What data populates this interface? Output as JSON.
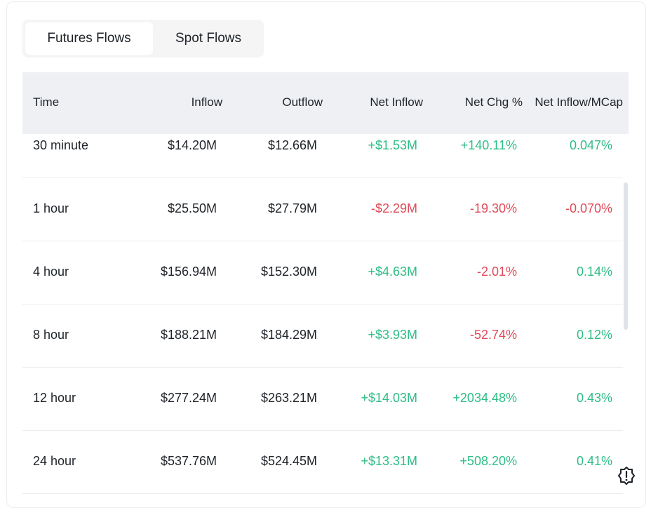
{
  "tabs": [
    "Futures Flows",
    "Spot Flows"
  ],
  "table": {
    "columns": [
      "Time",
      "Inflow",
      "Outflow",
      "Net Inflow",
      "Net Chg %",
      "Net Inflow/MCap"
    ],
    "rows": [
      [
        "30 minute",
        "$14.20M",
        "$12.66M",
        "+$1.53M",
        "+140.11%",
        "0.047%"
      ],
      [
        "1 hour",
        "$25.50M",
        "$27.79M",
        "-$2.29M",
        "-19.30%",
        "-0.070%"
      ],
      [
        "4 hour",
        "$156.94M",
        "$152.30M",
        "+$4.63M",
        "-2.01%",
        "0.14%"
      ],
      [
        "8 hour",
        "$188.21M",
        "$184.29M",
        "+$3.93M",
        "-52.74%",
        "0.12%"
      ],
      [
        "12 hour",
        "$277.24M",
        "$263.21M",
        "+$14.03M",
        "+2034.48%",
        "0.43%"
      ],
      [
        "24 hour",
        "$537.76M",
        "$524.45M",
        "+$13.31M",
        "+508.20%",
        "0.41%"
      ]
    ]
  }
}
